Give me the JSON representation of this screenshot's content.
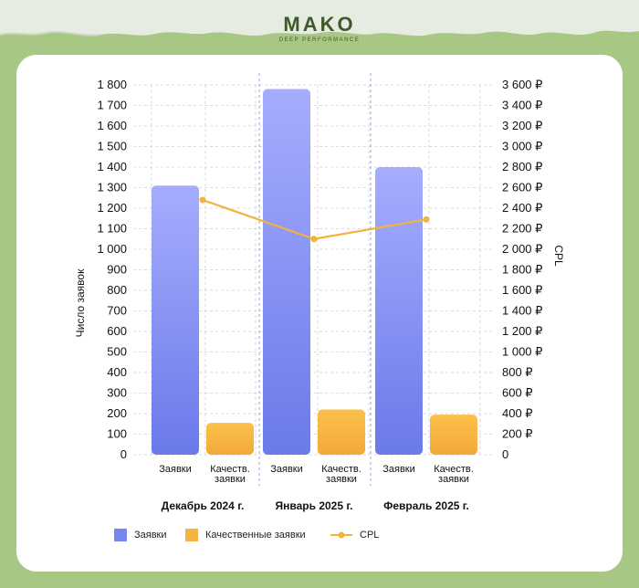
{
  "logo": {
    "name": "MAKO",
    "tagline": "DEEP PERFORMANCE"
  },
  "colors": {
    "background": "#a9c784",
    "card": "#ffffff",
    "bar_top": "#a6adfd",
    "bar_bottom": "#6b79ea",
    "quality_top": "#fbc14a",
    "quality_bottom": "#f3a93a",
    "cpl_line": "#f3b23c",
    "grid": "#cfcfcf",
    "separator": "#7a94c9"
  },
  "legend": {
    "requests": "Заявки",
    "quality": "Качественные заявки",
    "cpl": "CPL"
  },
  "chart_data": {
    "type": "bar",
    "ylabel": "Число заявок",
    "y2label": "CPL",
    "ylim": [
      0,
      1800
    ],
    "y2lim": [
      0,
      3600
    ],
    "yticks": [
      "0",
      "100",
      "200",
      "300",
      "400",
      "500",
      "600",
      "700",
      "800",
      "900",
      "1 000",
      "1 100",
      "1 200",
      "1 300",
      "1 400",
      "1 500",
      "1 600",
      "1 700",
      "1 800"
    ],
    "y2ticks": [
      "0",
      "200 ₽",
      "400 ₽",
      "600 ₽",
      "800 ₽",
      "1 000 ₽",
      "1 200 ₽",
      "1 400 ₽",
      "1 600 ₽",
      "1 800 ₽",
      "2 000 ₽",
      "2 200 ₽",
      "2 400 ₽",
      "2 600 ₽",
      "2 800 ₽",
      "3 000 ₽",
      "3 200 ₽",
      "3 400 ₽",
      "3 600 ₽"
    ],
    "grid": true,
    "legend_position": "bottom-left",
    "groups": [
      "Декабрь 2024 г.",
      "Январь 2025 г.",
      "Февраль 2025 г."
    ],
    "subcategories": [
      [
        "Заявки"
      ],
      [
        "Качеств.",
        "заявки"
      ]
    ],
    "series": [
      {
        "name": "Заявки",
        "values": [
          1310,
          1780,
          1400
        ]
      },
      {
        "name": "Качественные заявки",
        "values": [
          155,
          220,
          195
        ]
      },
      {
        "name": "CPL",
        "axis": "right",
        "values": [
          2480,
          2100,
          2290
        ]
      }
    ]
  }
}
